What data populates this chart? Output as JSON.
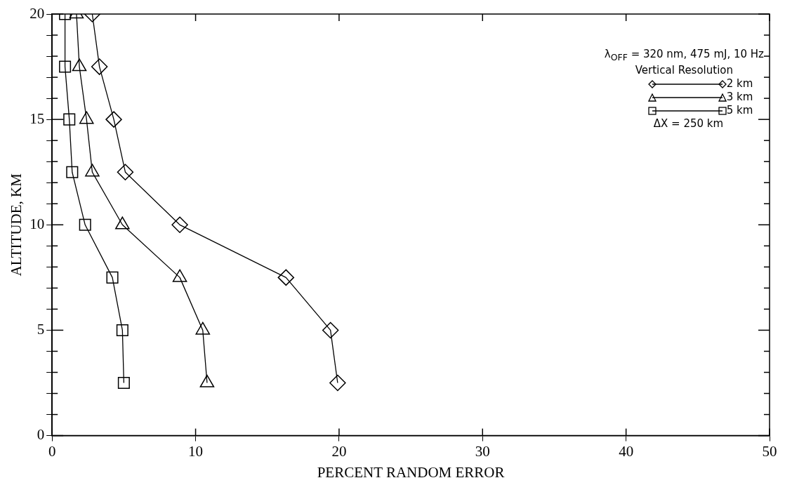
{
  "chart_data": {
    "type": "line",
    "xlabel": "PERCENT RANDOM ERROR",
    "ylabel": "ALTITUDE, KM",
    "legend_title": "Vertical Resolution",
    "legend": "top right",
    "grid": false,
    "line_style": "solid",
    "annotations": [
      "λ$_{OFF}$ = 320 nm, 475 mJ, 10 Hz",
      "ΔX = 250 km"
    ],
    "xlim": [
      0,
      50
    ],
    "xticks": [
      0,
      10,
      20,
      30,
      40,
      50
    ],
    "ylim": [
      0,
      20
    ],
    "yticks": [
      0,
      {
        "value": 1,
        "label": null
      },
      {
        "value": 2,
        "label": null
      },
      {
        "value": 3,
        "label": null
      },
      {
        "value": 4,
        "label": null
      },
      5,
      {
        "value": 6,
        "label": null
      },
      {
        "value": 7,
        "label": null
      },
      {
        "value": 8,
        "label": null
      },
      {
        "value": 9,
        "label": null
      },
      10,
      {
        "value": 11,
        "label": null
      },
      {
        "value": 12,
        "label": null
      },
      {
        "value": 13,
        "label": null
      },
      {
        "value": 14,
        "label": null
      },
      15,
      {
        "value": 16,
        "label": null
      },
      {
        "value": 17,
        "label": null
      },
      {
        "value": 18,
        "label": null
      },
      {
        "value": 19,
        "label": null
      },
      20
    ],
    "series": [
      {
        "name": "2 km",
        "color": "#000000",
        "marker": "diamond",
        "x": [
          19.9,
          19.4,
          16.3,
          8.9,
          5.1,
          4.3,
          3.3,
          2.8
        ],
        "values": [
          2.5,
          5,
          7.5,
          10,
          12.5,
          15,
          17.5,
          20
        ]
      },
      {
        "name": "3 km",
        "color": "#000000",
        "marker": "triangle",
        "x": [
          10.8,
          10.5,
          8.9,
          4.9,
          2.8,
          2.4,
          1.9,
          1.7
        ],
        "values": [
          2.5,
          5,
          7.5,
          10,
          12.5,
          15,
          17.5,
          20
        ]
      },
      {
        "name": "5 km",
        "color": "#000000",
        "marker": "square",
        "x": [
          5.0,
          4.9,
          4.2,
          2.3,
          1.4,
          1.2,
          0.9,
          0.9
        ],
        "values": [
          2.5,
          5,
          7.5,
          10,
          12.5,
          15,
          17.5,
          20
        ]
      }
    ]
  }
}
